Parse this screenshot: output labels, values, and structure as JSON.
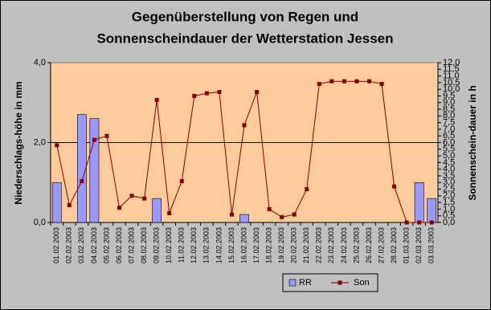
{
  "chart_data": {
    "type": "bar",
    "title": [
      "Gegenüberstellung von Regen und",
      "Sonnenscheindauer der Wetterstation Jessen"
    ],
    "y_label": "Niederschlags-höhe in mm",
    "y2_label": "Sonnenschein-dauer in h",
    "categories": [
      "01.02.2003",
      "02.02.2003",
      "03.02.2003",
      "04.02.2003",
      "05.02.2003",
      "06.02.2003",
      "07.02.2003",
      "08.02.2003",
      "09.02.2003",
      "10.02.2003",
      "11.02.2003",
      "12.02.2003",
      "13.02.2003",
      "14.02.2003",
      "15.02.2003",
      "16.02.2003",
      "17.02.2003",
      "18.02.2003",
      "19.02.2003",
      "20.02.2003",
      "21.02.2003",
      "22.02.2003",
      "23.02.2003",
      "24.02.2003",
      "25.02.2003",
      "26.02.2003",
      "27.02.2003",
      "28.02.2003",
      "01.03.2003",
      "02.03.2003",
      "03.03.2003"
    ],
    "series": [
      {
        "name": "RR",
        "type": "bar",
        "color": "#9999ff",
        "values": [
          1.0,
          0,
          2.7,
          2.6,
          0,
          0,
          0,
          0,
          0.6,
          0,
          0,
          0,
          0,
          0,
          0,
          0.2,
          0,
          0,
          0,
          0,
          0,
          0,
          0,
          0,
          0,
          0,
          0,
          0,
          0,
          1.0,
          0.6
        ]
      },
      {
        "name": "Son",
        "type": "line",
        "axis": "y2",
        "color": "#800000",
        "values": [
          5.8,
          1.3,
          3.1,
          6.2,
          6.5,
          1.1,
          2.0,
          1.8,
          9.2,
          0.7,
          3.1,
          9.5,
          9.7,
          9.8,
          0.6,
          7.3,
          9.8,
          1.0,
          0.4,
          0.6,
          2.5,
          10.4,
          10.6,
          10.6,
          10.6,
          10.6,
          10.4,
          2.7,
          0.0,
          0.0,
          0.0
        ]
      }
    ],
    "ylim": [
      0,
      4
    ],
    "yticks": [
      {
        "value": 0,
        "label": "0,0"
      },
      {
        "value": 2,
        "label": "2,0"
      },
      {
        "value": 4,
        "label": "4,0"
      }
    ],
    "y2lim": [
      0,
      12
    ],
    "y2ticks": [
      {
        "value": 0,
        "label": "0,0"
      },
      {
        "value": 0.5,
        "label": "0,5"
      },
      {
        "value": 1,
        "label": "1,0"
      },
      {
        "value": 1.5,
        "label": "1,5"
      },
      {
        "value": 2,
        "label": "2,0"
      },
      {
        "value": 2.5,
        "label": "2,5"
      },
      {
        "value": 3,
        "label": "3,0"
      },
      {
        "value": 3.5,
        "label": "3,5"
      },
      {
        "value": 4,
        "label": "4,0"
      },
      {
        "value": 4.5,
        "label": "4,5"
      },
      {
        "value": 5,
        "label": "5,0"
      },
      {
        "value": 5.5,
        "label": "5,5"
      },
      {
        "value": 6,
        "label": "6,0"
      },
      {
        "value": 6.5,
        "label": "6,5"
      },
      {
        "value": 7,
        "label": "7,0"
      },
      {
        "value": 7.5,
        "label": "7,5"
      },
      {
        "value": 8,
        "label": "8,0"
      },
      {
        "value": 8.5,
        "label": "8,5"
      },
      {
        "value": 9,
        "label": "9,0"
      },
      {
        "value": 9.5,
        "label": "9,5"
      },
      {
        "value": 10,
        "label": "10,0"
      },
      {
        "value": 10.5,
        "label": "10,5"
      },
      {
        "value": 11,
        "label": "11,0"
      },
      {
        "value": 11.5,
        "label": "11,5"
      },
      {
        "value": 12,
        "label": "12,0"
      }
    ],
    "grid": true,
    "legend": "bottom"
  }
}
